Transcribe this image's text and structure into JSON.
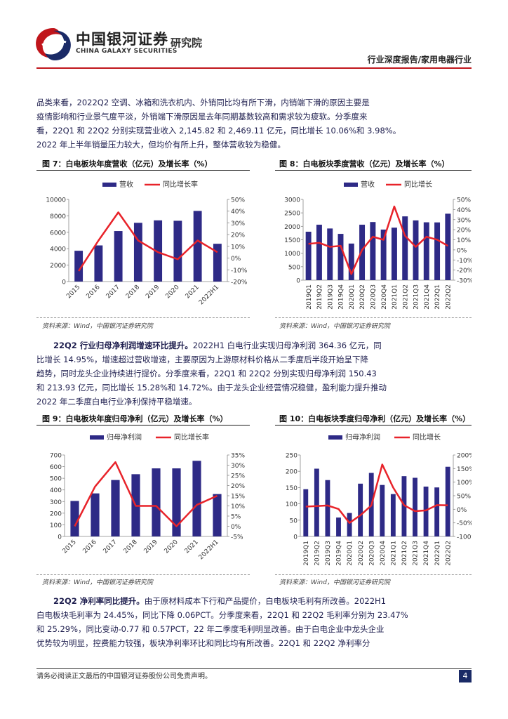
{
  "header": {
    "brand_cn": "中国银河证券",
    "brand_en": "CHINA GALAXY SECURITIES",
    "institute": "研究院",
    "report_type": "行业深度报告/家用电器行业"
  },
  "paragraphs": {
    "p1_lines": [
      "品类来看，2022Q2 空调、冰箱和洗衣机内、外销同比均有所下滑，内销端下滑的原因主要是",
      "疫情影响和行业景气度平淡，外销端下滑原因是去年同期基数较高和需求较为疲软。分季度来",
      "看，22Q1 和 22Q2 分别实现营业收入 2,145.82 和 2,469.11 亿元，同比增长 10.06%和 3.98%。",
      "2022 年上半年销量压力较大，但均价有所上升，整体营收较为稳健。"
    ],
    "p2_lead": "22Q2 行业归母净利润增速环比提升。",
    "p2_lines": [
      "2022H1 白电行业实现归母净利润 364.36 亿元，同",
      "比增长 14.95%，增速超过营收增速，主要原因为上游原材料价格从二季度后半段开始呈下降",
      "趋势，同时龙头企业持续进行提价。分季度来看，22Q1 和 22Q2 分别实现归母净利润 150.43",
      "和 213.93 亿元，同比增长 15.28%和 14.72%。由于龙头企业经营情况稳健，盈利能力提升推动",
      "2022 年二季度白电行业净利保持平稳增速。"
    ],
    "p3_lead": "22Q2 净利率同比提升。",
    "p3_lines": [
      "由于原材料成本下行和产品提价，白电板块毛利有所改善。2022H1",
      "白电板块毛利率为 24.45%，同比下降 0.06PCT。分季度来看，22Q1 和 22Q2 毛利率分别为 23.47%",
      "和 25.29%，同比变动-0.77 和 0.57PCT，22 年二季度毛利明显改善。由于白电企业中龙头企业",
      "优势较为明显，控费能力较强，板块净利率环比和同比均有所改善。22Q1 和 22Q2 净利率分"
    ]
  },
  "figures": {
    "fig7": {
      "title": "图 7：白电板块年度营收（亿元）及增长率（%）",
      "legend_bar": "营收",
      "legend_line": "同比增长率",
      "source": "资料来源：Wind，中国银河证券研究院",
      "left_ticks": [
        "10000",
        "8000",
        "6000",
        "4000",
        "2000",
        "0"
      ],
      "right_ticks": [
        "50%",
        "40%",
        "30%",
        "20%",
        "10%",
        "0%",
        "-10%",
        "-20%"
      ]
    },
    "fig8": {
      "title": "图 8：白电板块季度营收（亿元）及增长率（%）",
      "legend_bar": "营收",
      "legend_line": "同比增长",
      "source": "资料来源：Wind，中国银河证券研究院",
      "left_ticks": [
        "3000",
        "2500",
        "2000",
        "1500",
        "1000",
        "500",
        "0"
      ],
      "right_ticks": [
        "50%",
        "40%",
        "30%",
        "20%",
        "10%",
        "0%",
        "-10%",
        "-20%",
        "-30%"
      ]
    },
    "fig9": {
      "title": "图 9：白电板块年度归母净利（亿元）及增长率（%）",
      "legend_bar": "归母净利润",
      "legend_line": "同比增长率",
      "source": "资料来源：Wind，中国银河证券研究院",
      "left_ticks": [
        "700",
        "600",
        "500",
        "400",
        "300",
        "200",
        "100",
        "0"
      ],
      "right_ticks": [
        "35%",
        "30%",
        "25%",
        "20%",
        "15%",
        "10%",
        "5%",
        "0%",
        "-5%"
      ]
    },
    "fig10": {
      "title": "图 10：白电板块季度归母净利（亿元）及增长率（%）",
      "legend_bar": "归母净利润",
      "legend_line": "同比增长",
      "source": "资料来源：Wind，中国银河证券研究院",
      "left_ticks": [
        "250",
        "200",
        "150",
        "100",
        "50",
        "0"
      ],
      "right_ticks": [
        "200%",
        "150%",
        "100%",
        "50%",
        "0%",
        "-50%",
        "-100%"
      ]
    }
  },
  "chart_data": [
    {
      "type": "bar",
      "id": "fig7",
      "categories": [
        "2015",
        "2016",
        "2017",
        "2018",
        "2019",
        "2020",
        "2021",
        "2022H1"
      ],
      "series": [
        {
          "name": "营收",
          "kind": "bar",
          "axis": "left",
          "values": [
            3750,
            4400,
            6150,
            7150,
            7450,
            7400,
            8600,
            4600
          ]
        },
        {
          "name": "同比增长率",
          "kind": "line",
          "axis": "right",
          "values": [
            -11,
            15,
            39,
            15,
            5,
            -1,
            15,
            5
          ]
        }
      ],
      "ylim": [
        0,
        10000
      ],
      "y2lim": [
        -20,
        50
      ],
      "colors": {
        "bar": "#2e2a86",
        "line": "#e8232a"
      }
    },
    {
      "type": "bar",
      "id": "fig8",
      "categories": [
        "2019Q1",
        "2019Q2",
        "2019Q3",
        "2019Q4",
        "2020Q1",
        "2020Q2",
        "2020Q3",
        "2020Q4",
        "2021Q1",
        "2021Q2",
        "2021Q3",
        "2021Q4",
        "2022Q1",
        "2022Q2"
      ],
      "series": [
        {
          "name": "营收",
          "kind": "bar",
          "axis": "left",
          "values": [
            1800,
            2060,
            1920,
            1720,
            1360,
            2060,
            2160,
            1880,
            1950,
            2370,
            2220,
            2150,
            2145.82,
            2469.11
          ]
        },
        {
          "name": "同比增长",
          "kind": "line",
          "axis": "right",
          "values": [
            6,
            7,
            3,
            4,
            -24,
            0,
            13,
            10,
            43,
            14,
            3,
            13,
            10.06,
            3.98
          ]
        }
      ],
      "ylim": [
        0,
        3000
      ],
      "y2lim": [
        -30,
        50
      ],
      "colors": {
        "bar": "#2e2a86",
        "line": "#e8232a"
      }
    },
    {
      "type": "bar",
      "id": "fig9",
      "categories": [
        "2015",
        "2016",
        "2017",
        "2018",
        "2019",
        "2020",
        "2021",
        "2022H1"
      ],
      "series": [
        {
          "name": "归母净利润",
          "kind": "bar",
          "axis": "left",
          "values": [
            305,
            370,
            485,
            535,
            585,
            585,
            650,
            364.36
          ]
        },
        {
          "name": "同比增长率",
          "kind": "line",
          "axis": "right",
          "values": [
            0,
            19.5,
            31.5,
            10,
            10,
            0,
            10.5,
            14.95
          ]
        }
      ],
      "ylim": [
        0,
        700
      ],
      "y2lim": [
        -5,
        35
      ],
      "colors": {
        "bar": "#2e2a86",
        "line": "#e8232a"
      }
    },
    {
      "type": "bar",
      "id": "fig10",
      "categories": [
        "2019Q1",
        "2019Q2",
        "2019Q3",
        "2019Q4",
        "2020Q1",
        "2020Q2",
        "2020Q3",
        "2020Q4",
        "2021Q1",
        "2021Q2",
        "2021Q3",
        "2021Q4",
        "2022Q1",
        "2022Q2"
      ],
      "series": [
        {
          "name": "归母净利润",
          "kind": "bar",
          "axis": "left",
          "values": [
            145,
            208,
            173,
            58,
            72,
            162,
            195,
            158,
            130,
            185,
            180,
            153,
            150.43,
            213.93
          ]
        },
        {
          "name": "同比增长",
          "kind": "line",
          "axis": "right",
          "values": [
            10,
            12,
            14,
            1,
            -50,
            -22,
            14,
            165,
            80,
            15,
            -7,
            -4,
            15.28,
            14.72
          ]
        }
      ],
      "ylim": [
        0,
        250
      ],
      "y2lim": [
        -100,
        200
      ],
      "colors": {
        "bar": "#2e2a86",
        "line": "#e8232a"
      }
    }
  ],
  "footer": {
    "note": "请务必阅读正文最后的中国银河证券股份公司免责声明。",
    "page": "4"
  },
  "colors": {
    "accent": "#c0151b",
    "navy": "#1a2a66"
  }
}
